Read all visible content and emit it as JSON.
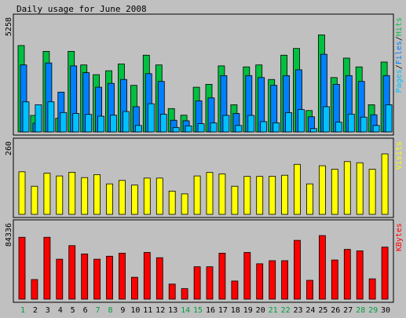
{
  "chart_data": {
    "type": "bar",
    "title": "Daily usage for June 2008",
    "days": [
      "1",
      "2",
      "3",
      "4",
      "5",
      "6",
      "7",
      "8",
      "9",
      "10",
      "11",
      "12",
      "13",
      "14",
      "15",
      "16",
      "17",
      "18",
      "19",
      "20",
      "21",
      "22",
      "23",
      "24",
      "25",
      "26",
      "27",
      "28",
      "29",
      "30"
    ],
    "weekend_days": [
      "1",
      "7",
      "8",
      "14",
      "15",
      "21",
      "22",
      "28",
      "29"
    ],
    "colors": {
      "background": "#c0c0c0",
      "hits": "#00c040",
      "files": "#0080ff",
      "pages": "#00c0ff",
      "visits": "#ffff00",
      "kbytes": "#ff0000",
      "weekday_label": "#000000",
      "weekend_label": "#00a040"
    },
    "panels": [
      {
        "id": "hits",
        "ylabel_parts": [
          {
            "text": "Pages",
            "color": "#00c0ff"
          },
          {
            "text": "/",
            "color": "#000000"
          },
          {
            "text": "Files",
            "color": "#0080ff"
          },
          {
            "text": "/",
            "color": "#000000"
          },
          {
            "text": "Hits",
            "color": "#00c040"
          }
        ],
        "max_label": "5258",
        "ymax": 5258,
        "series": [
          {
            "name": "Hits",
            "color": "#00c040",
            "values": [
              4450,
              850,
              4150,
              700,
              4150,
              3450,
              2950,
              3150,
              3500,
              2400,
              3950,
              3450,
              1200,
              860,
              2300,
              2450,
              3400,
              1400,
              3350,
              3450,
              2700,
              3950,
              4300,
              1100,
              5000,
              2800,
              3800,
              3350,
              1400,
              3600
            ]
          },
          {
            "name": "Files",
            "color": "#0080ff",
            "values": [
              3450,
              450,
              3550,
              2050,
              3400,
              3050,
              2300,
              2500,
              2700,
              1300,
              3000,
              2600,
              600,
              570,
              1600,
              1750,
              2900,
              950,
              2900,
              2800,
              2400,
              2900,
              3200,
              780,
              4000,
              2450,
              2900,
              2600,
              880,
              2900
            ]
          },
          {
            "name": "Pages",
            "color": "#00c0ff",
            "values": [
              1550,
              1400,
              1550,
              1000,
              950,
              900,
              810,
              860,
              1050,
              330,
              1450,
              910,
              230,
              310,
              420,
              460,
              850,
              330,
              850,
              530,
              470,
              990,
              1150,
              170,
              1300,
              500,
              920,
              760,
              330,
              1400
            ]
          }
        ]
      },
      {
        "id": "visits",
        "ylabel_parts": [
          {
            "text": "Visits",
            "color": "#ffff00"
          }
        ],
        "max_label": "260",
        "ymax": 260,
        "series": [
          {
            "name": "Visits",
            "color": "#ffff00",
            "values": [
              183,
              121,
              177,
              165,
              181,
              158,
              171,
              131,
              146,
              126,
              156,
              156,
              100,
              88,
              165,
              180,
              174,
              121,
              163,
              163,
              164,
              168,
              215,
              131,
              209,
              194,
              227,
              222,
              194,
              260
            ]
          }
        ]
      },
      {
        "id": "kbytes",
        "ylabel_parts": [
          {
            "text": "KBytes",
            "color": "#ff0000"
          }
        ],
        "max_label": "84336",
        "ymax": 84336,
        "series": [
          {
            "name": "KBytes",
            "color": "#ff0000",
            "values": [
              82000,
              26000,
              82000,
              53000,
              71000,
              60000,
              53000,
              57000,
              61000,
              29000,
              62000,
              55000,
              20000,
              14000,
              43000,
              43000,
              61000,
              24000,
              62000,
              47000,
              51000,
              51000,
              78000,
              25000,
              84336,
              52000,
              66000,
              64000,
              27000,
              69000
            ]
          }
        ]
      }
    ]
  }
}
